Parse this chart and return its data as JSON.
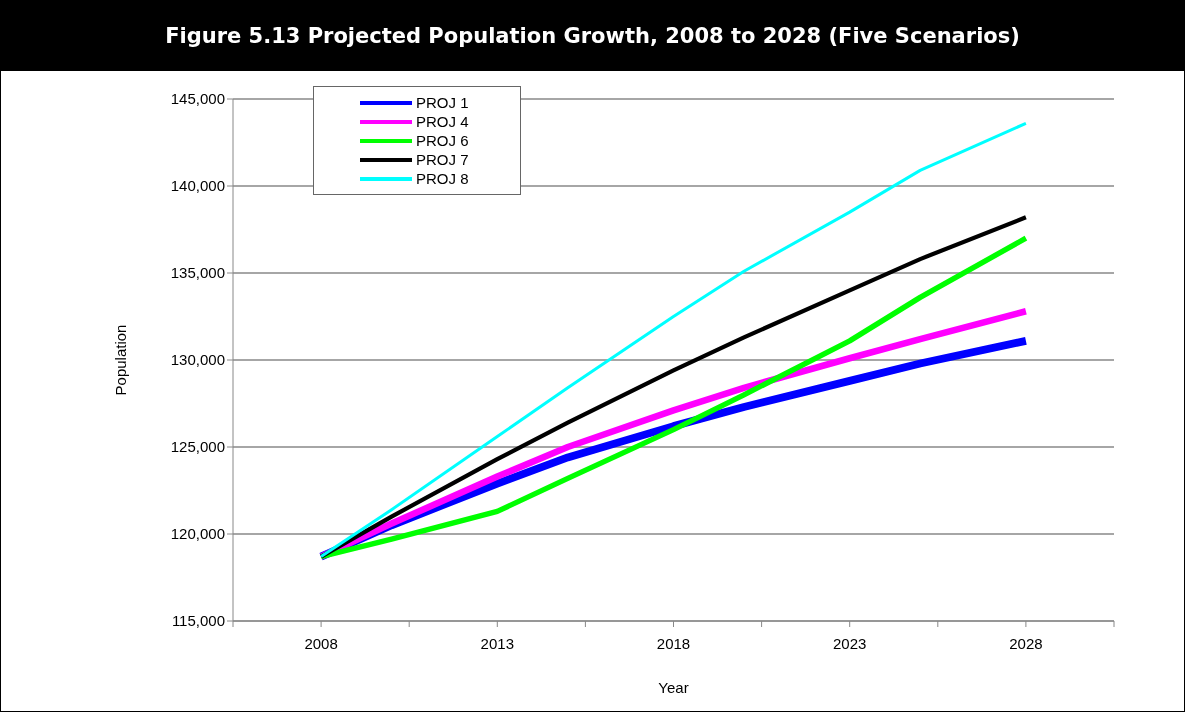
{
  "chart_data": {
    "type": "line",
    "title": "Figure 5.13 Projected Population Growth, 2008 to 2028 (Five Scenarios)",
    "xlabel": "Year",
    "ylabel": "Population",
    "x": [
      2008,
      2010,
      2013,
      2015,
      2018,
      2020,
      2023,
      2025,
      2028
    ],
    "xlim": [
      2005.5,
      2030.5
    ],
    "xticks": [
      {
        "value": 2005.5,
        "label": null
      },
      2008,
      {
        "value": 2010.5,
        "label": null
      },
      2013,
      {
        "value": 2015.5,
        "label": null
      },
      2018,
      {
        "value": 2020.5,
        "label": null
      },
      2023,
      {
        "value": 2025.5,
        "label": null
      },
      2028,
      {
        "value": 2030.5,
        "label": null
      }
    ],
    "ylim": [
      115000,
      145000
    ],
    "yticks": [
      {
        "value": 115000,
        "label": "115,000"
      },
      {
        "value": 120000,
        "label": "120,000"
      },
      {
        "value": 125000,
        "label": "125,000"
      },
      {
        "value": 130000,
        "label": "130,000"
      },
      {
        "value": 135000,
        "label": "135,000"
      },
      {
        "value": 140000,
        "label": "140,000"
      },
      {
        "value": 145000,
        "label": "145,000"
      }
    ],
    "grid": "y",
    "legend": "top left",
    "marker": "none",
    "line_style": "solid",
    "series": [
      {
        "name": "PROJ 1",
        "color": "#0000ff",
        "values": [
          118700,
          120500,
          122900,
          124400,
          126200,
          127300,
          128800,
          129800,
          131100
        ]
      },
      {
        "name": "PROJ 4",
        "color": "#ff00ff",
        "values": [
          118700,
          120600,
          123300,
          125000,
          127100,
          128400,
          130100,
          131200,
          132800
        ]
      },
      {
        "name": "PROJ 6",
        "color": "#00ff00",
        "values": [
          118700,
          119700,
          121300,
          123200,
          126000,
          128000,
          131100,
          133600,
          137000
        ]
      },
      {
        "name": "PROJ 7",
        "color": "#000000",
        "values": [
          118700,
          121000,
          124300,
          126400,
          129400,
          131300,
          134000,
          135800,
          138200
        ]
      },
      {
        "name": "PROJ 8",
        "color": "#00ffff",
        "values": [
          118700,
          121400,
          125600,
          128400,
          132500,
          135100,
          138500,
          140900,
          143600
        ]
      }
    ]
  }
}
